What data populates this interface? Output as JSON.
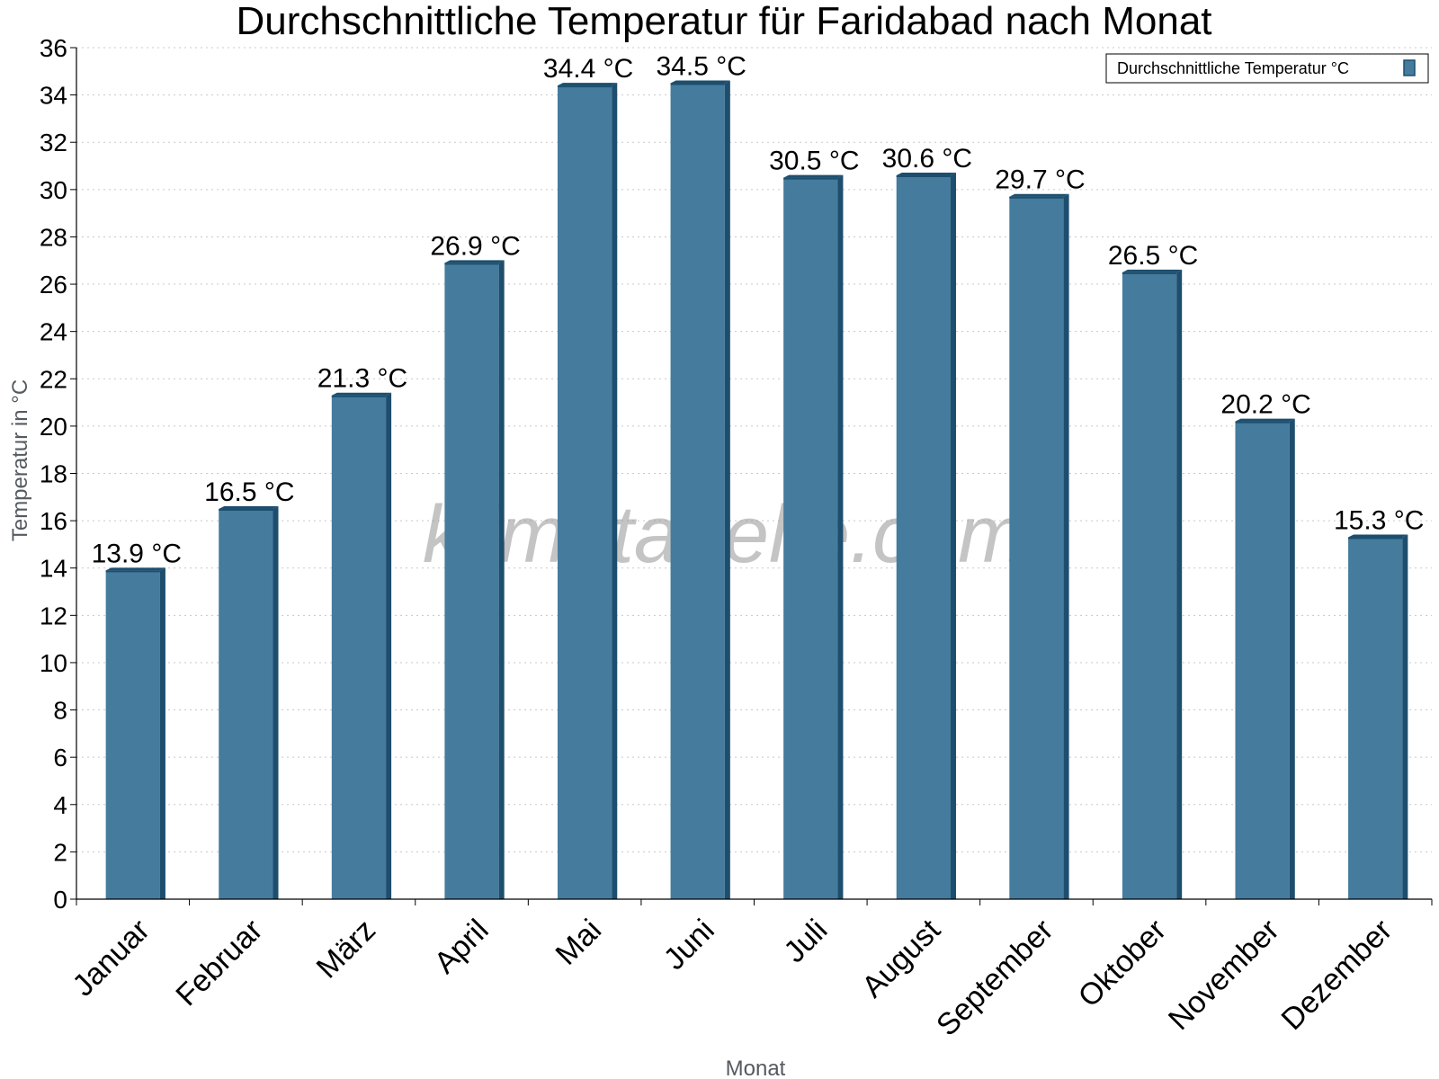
{
  "chart_data": {
    "type": "bar",
    "title": "Durchschnittliche Temperatur für Faridabad nach Monat",
    "xlabel": "Monat",
    "ylabel": "Temperatur in °C",
    "categories": [
      "Januar",
      "Februar",
      "März",
      "April",
      "Mai",
      "Juni",
      "Juli",
      "August",
      "September",
      "Oktober",
      "November",
      "Dezember"
    ],
    "series": [
      {
        "name": "Durchschnittliche Temperatur °C",
        "values": [
          13.9,
          16.5,
          21.3,
          26.9,
          34.4,
          34.5,
          30.5,
          30.6,
          29.7,
          26.5,
          20.2,
          15.3
        ]
      }
    ],
    "data_labels": [
      "13.9 °C",
      "16.5 °C",
      "21.3 °C",
      "26.9 °C",
      "34.4 °C",
      "34.5 °C",
      "30.5 °C",
      "30.6 °C",
      "29.7 °C",
      "26.5 °C",
      "20.2 °C",
      "15.3 °C"
    ],
    "ylim": [
      0,
      36
    ],
    "ytick_step": 2,
    "grid": true,
    "legend_position": "top-right",
    "colors": {
      "bar": "#457b9d",
      "bar_edge": "#1d4e6e"
    },
    "watermark": "klimatabelle.com"
  }
}
